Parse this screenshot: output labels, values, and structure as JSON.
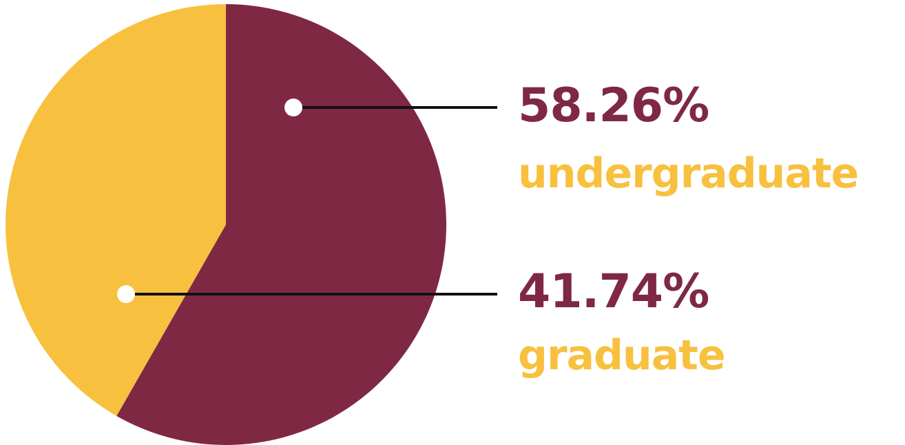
{
  "chart_data": {
    "type": "pie",
    "slices": [
      {
        "label": "undergraduate",
        "value": 58.26,
        "value_label": "58.26%",
        "color": "#7f2844"
      },
      {
        "label": "graduate",
        "value": 41.74,
        "value_label": "41.74%",
        "color": "#f7c13f"
      }
    ],
    "start": "12 o'clock",
    "direction": "clockwise",
    "legend": "right",
    "label_colors": {
      "value": "#7f2844",
      "name": "#f7c13f"
    },
    "marker_color": "#ffffff",
    "leader_line_color": "#111111"
  }
}
